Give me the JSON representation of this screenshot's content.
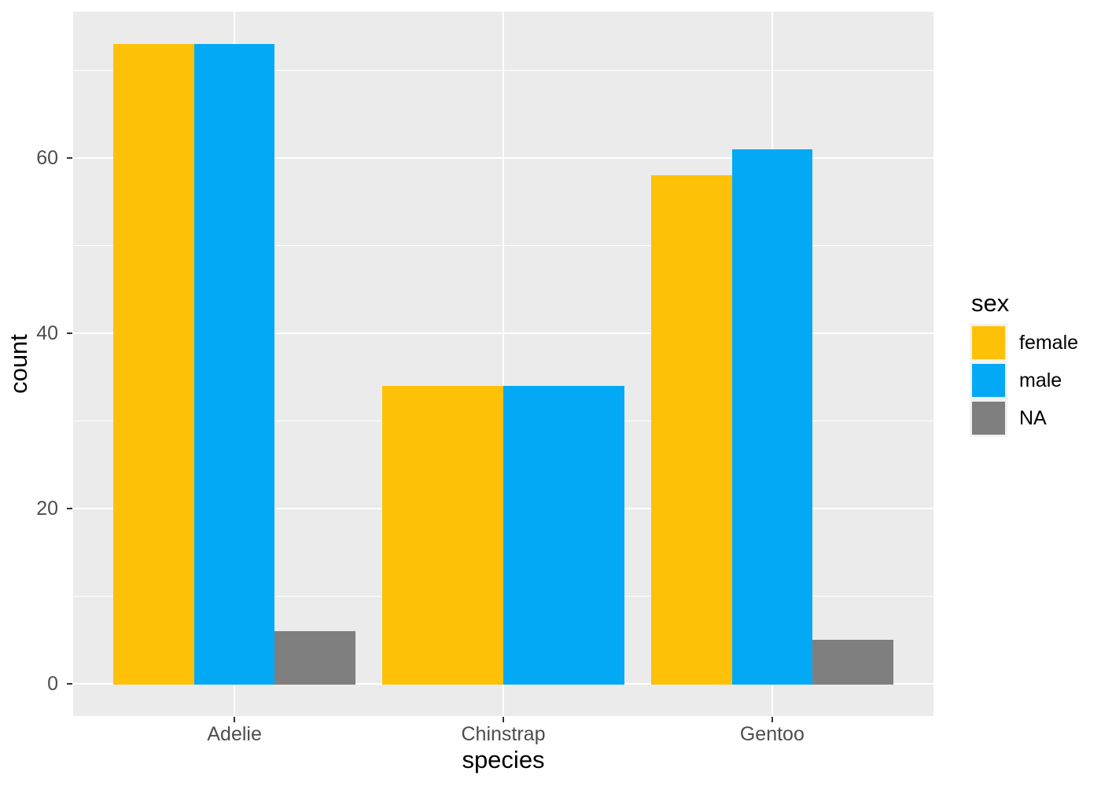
{
  "chart_data": {
    "type": "bar",
    "title": "",
    "xlabel": "species",
    "ylabel": "count",
    "categories": [
      "Adelie",
      "Chinstrap",
      "Gentoo"
    ],
    "series": [
      {
        "name": "female",
        "color": "#FFC107",
        "values": [
          73,
          34,
          58
        ]
      },
      {
        "name": "male",
        "color": "#03A9F4",
        "values": [
          73,
          34,
          61
        ]
      },
      {
        "name": "NA",
        "color": "#7F7F7F",
        "values": [
          6,
          null,
          5
        ]
      }
    ],
    "legend": {
      "title": "sex",
      "position": "right",
      "entries": [
        "female",
        "male",
        "NA"
      ]
    },
    "y_axis": {
      "ticks": [
        0,
        20,
        40,
        60
      ],
      "tick_labels": [
        "0",
        "20",
        "40",
        "60"
      ],
      "minor_ticks": [
        10,
        30,
        50,
        70
      ],
      "lim": [
        -3.65,
        76.65
      ]
    },
    "x_axis": {
      "expand": 0.6,
      "dodge_total_width": 0.9
    },
    "grid": true,
    "legend_position": "right",
    "theme": {
      "background": "#FFFFFF",
      "panel_bg": "#EBEBEB",
      "grid_major": "#FFFFFF",
      "grid_minor": "#FFFFFF",
      "tick_mark": "#333333",
      "axis_text": "#4D4D4D",
      "axis_title": "#000000",
      "legend_key_bg": "#F2F2F2"
    }
  }
}
